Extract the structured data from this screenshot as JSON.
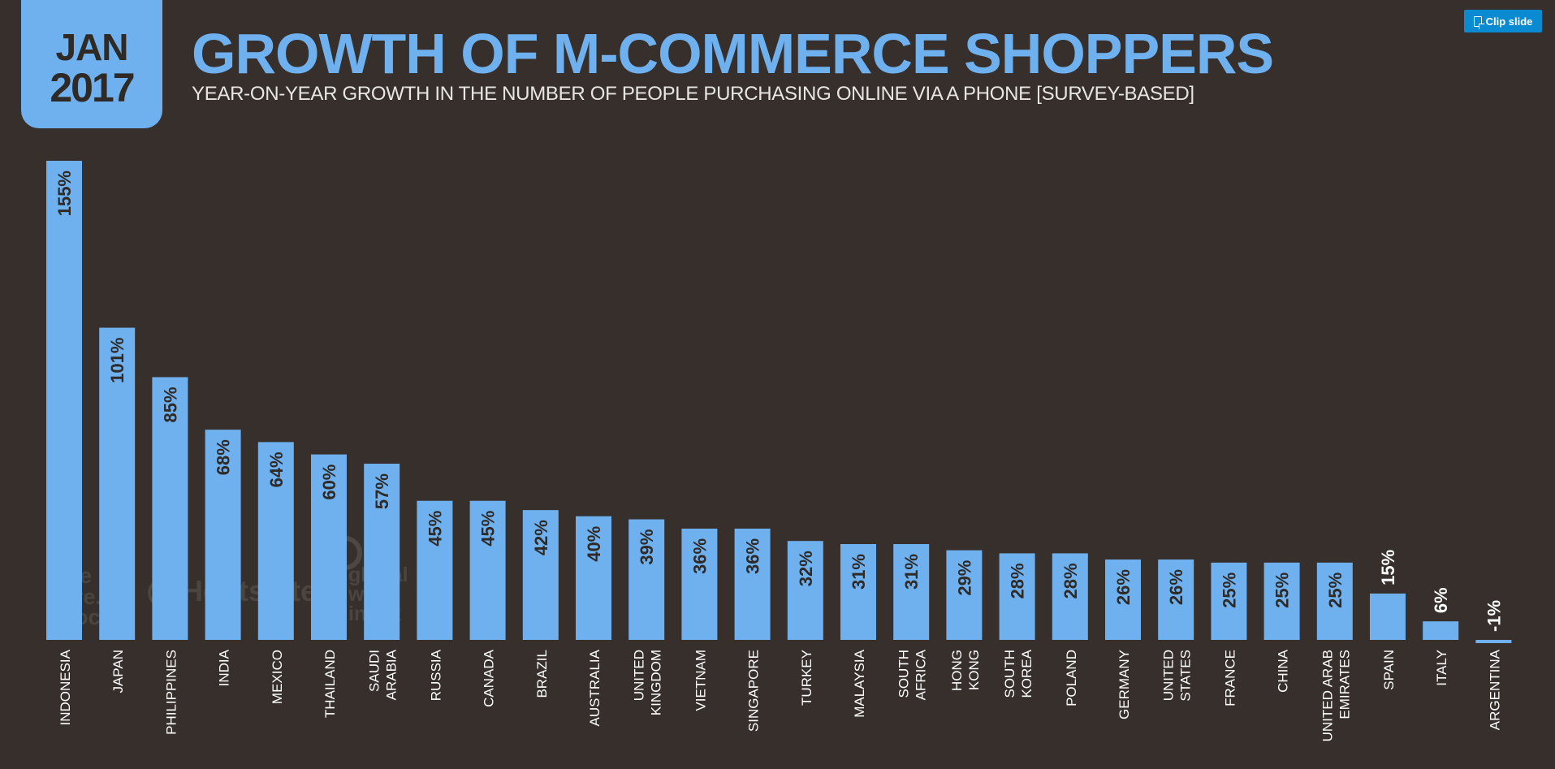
{
  "badge": {
    "month": "JAN",
    "year": "2017"
  },
  "header": {
    "title": "GROWTH OF M-COMMERCE SHOPPERS",
    "subtitle": "YEAR-ON-YEAR GROWTH IN THE NUMBER OF PEOPLE PURCHASING ONLINE VIA A PHONE [SURVEY-BASED]"
  },
  "clip_button": {
    "label": "Clip slide",
    "icon": "clip-icon"
  },
  "watermarks": {
    "social": [
      "we",
      "are.",
      "social"
    ],
    "hootsuite": "Hootsuite",
    "gwi": [
      "global",
      "web",
      "index"
    ]
  },
  "colors": {
    "bar": "#6fb0ee",
    "background": "#362f2b",
    "value_text": "#2f2a26",
    "axis_text": "#ffffff"
  },
  "chart_data": {
    "type": "bar",
    "title": "GROWTH OF M-COMMERCE SHOPPERS",
    "subtitle": "YEAR-ON-YEAR GROWTH IN THE NUMBER OF PEOPLE PURCHASING ONLINE VIA A PHONE [SURVEY-BASED]",
    "xlabel": "",
    "ylabel": "",
    "categories": [
      [
        "INDONESIA"
      ],
      [
        "JAPAN"
      ],
      [
        "PHILIPPINES"
      ],
      [
        "INDIA"
      ],
      [
        "MEXICO"
      ],
      [
        "THAILAND"
      ],
      [
        "SAUDI",
        "ARABIA"
      ],
      [
        "RUSSIA"
      ],
      [
        "CANADA"
      ],
      [
        "BRAZIL"
      ],
      [
        "AUSTRALIA"
      ],
      [
        "UNITED",
        "KINGDOM"
      ],
      [
        "VIETNAM"
      ],
      [
        "SINGAPORE"
      ],
      [
        "TURKEY"
      ],
      [
        "MALAYSIA"
      ],
      [
        "SOUTH",
        "AFRICA"
      ],
      [
        "HONG",
        "KONG"
      ],
      [
        "SOUTH",
        "KOREA"
      ],
      [
        "POLAND"
      ],
      [
        "GERMANY"
      ],
      [
        "UNITED",
        "STATES"
      ],
      [
        "FRANCE"
      ],
      [
        "CHINA"
      ],
      [
        "UNITED ARAB",
        "EMIRATES"
      ],
      [
        "SPAIN"
      ],
      [
        "ITALY"
      ],
      [
        "ARGENTINA"
      ]
    ],
    "values": [
      155,
      101,
      85,
      68,
      64,
      60,
      57,
      45,
      45,
      42,
      40,
      39,
      36,
      36,
      32,
      31,
      31,
      29,
      28,
      28,
      26,
      26,
      25,
      25,
      25,
      15,
      6,
      -1
    ],
    "labels": [
      "155%",
      "101%",
      "85%",
      "68%",
      "64%",
      "60%",
      "57%",
      "45%",
      "45%",
      "42%",
      "40%",
      "39%",
      "36%",
      "36%",
      "32%",
      "31%",
      "31%",
      "29%",
      "28%",
      "28%",
      "26%",
      "26%",
      "25%",
      "25%",
      "25%",
      "15%",
      "6%",
      "-1%"
    ],
    "ylim": [
      -1,
      155
    ],
    "grid": false,
    "legend": "none"
  }
}
